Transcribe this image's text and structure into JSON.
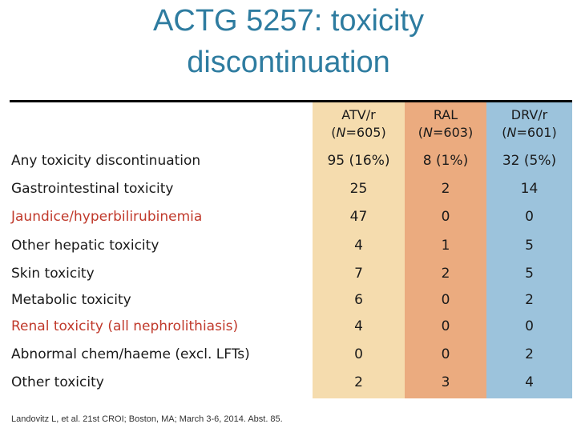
{
  "title": {
    "line1": "ACTG 5257: toxicity",
    "line2": "discontinuation"
  },
  "table": {
    "headers": [
      {
        "name": "ATV/r",
        "n_prefix": "(",
        "n_label": "N",
        "n_value": "=605)"
      },
      {
        "name": "RAL",
        "n_prefix": "(",
        "n_label": "N",
        "n_value": "=603)"
      },
      {
        "name": "DRV/r",
        "n_prefix": "(",
        "n_label": "N",
        "n_value": "=601)"
      }
    ],
    "rows": [
      {
        "label": "Any toxicity discontinuation",
        "atv": "95 (16%)",
        "ral": "8 (1%)",
        "drv": "32 (5%)"
      },
      {
        "label": "Gastrointestinal toxicity",
        "atv": "25",
        "ral": "2",
        "drv": "14"
      },
      {
        "label": "Jaundice/hyperbilirubinemia",
        "atv": "47",
        "ral": "0",
        "drv": "0"
      },
      {
        "label": "Other hepatic toxicity",
        "atv": "4",
        "ral": "1",
        "drv": "5"
      },
      {
        "label": "Skin toxicity",
        "atv": "7",
        "ral": "2",
        "drv": "5"
      },
      {
        "label": "Metabolic toxicity",
        "atv": "6",
        "ral": "0",
        "drv": "2"
      },
      {
        "label": "Renal toxicity (all nephrolithiasis)",
        "atv": "4",
        "ral": "0",
        "drv": "0"
      },
      {
        "label": "Abnormal chem/haeme (excl. LFTs)",
        "atv": "0",
        "ral": "0",
        "drv": "2"
      },
      {
        "label": "Other toxicity",
        "atv": "2",
        "ral": "3",
        "drv": "4"
      }
    ],
    "highlight_color": "#c0392b",
    "column_colors": {
      "atv": "#f5dcae",
      "ral": "#ebab7f",
      "drv": "#9cc3dc"
    }
  },
  "footnote": "Landovitz L, et al. 21st CROI; Boston, MA; March 3-6, 2014. Abst. 85."
}
